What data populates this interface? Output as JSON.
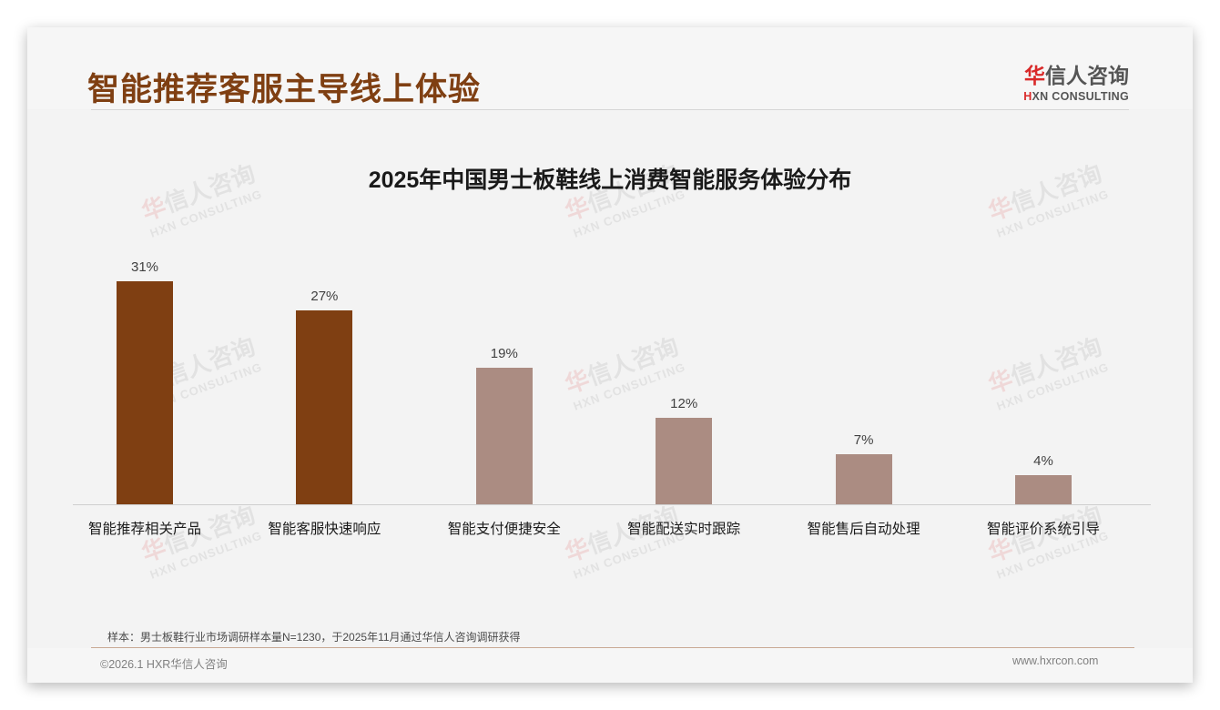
{
  "header": {
    "title": "智能推荐客服主导线上体验",
    "logo_cn_mark": "华",
    "logo_cn_rest": "信人咨询",
    "logo_en_mark": "H",
    "logo_en_rest": "XN CONSULTING"
  },
  "watermark": {
    "cn_mark": "华",
    "cn_rest": "信人咨询",
    "en": "HXN CONSULTING"
  },
  "colors": {
    "title": "#7f3f12",
    "bar_highlight": "#7f3f12",
    "bar_normal": "#ab8c82",
    "background": "#f3f3f3",
    "footer_rule": "#c9a993"
  },
  "chart_data": {
    "type": "bar",
    "title": "2025年中国男士板鞋线上消费智能服务体验分布",
    "categories": [
      "智能推荐相关产品",
      "智能客服快速响应",
      "智能支付便捷安全",
      "智能配送实时跟踪",
      "智能售后自动处理",
      "智能评价系统引导"
    ],
    "values": [
      31,
      27,
      19,
      12,
      7,
      4
    ],
    "value_labels": [
      "31%",
      "27%",
      "19%",
      "12%",
      "7%",
      "4%"
    ],
    "highlight": [
      true,
      true,
      false,
      false,
      false,
      false
    ],
    "unit": "%",
    "xlabel": "",
    "ylabel": "",
    "ylim": [
      0,
      36
    ],
    "grid": false,
    "legend": "none"
  },
  "footer": {
    "note": "样本：男士板鞋行业市场调研样本量N=1230，于2025年11月通过华信人咨询调研获得",
    "copyright": "©2026.1 HXR华信人咨询",
    "website": "www.hxrcon.com"
  }
}
